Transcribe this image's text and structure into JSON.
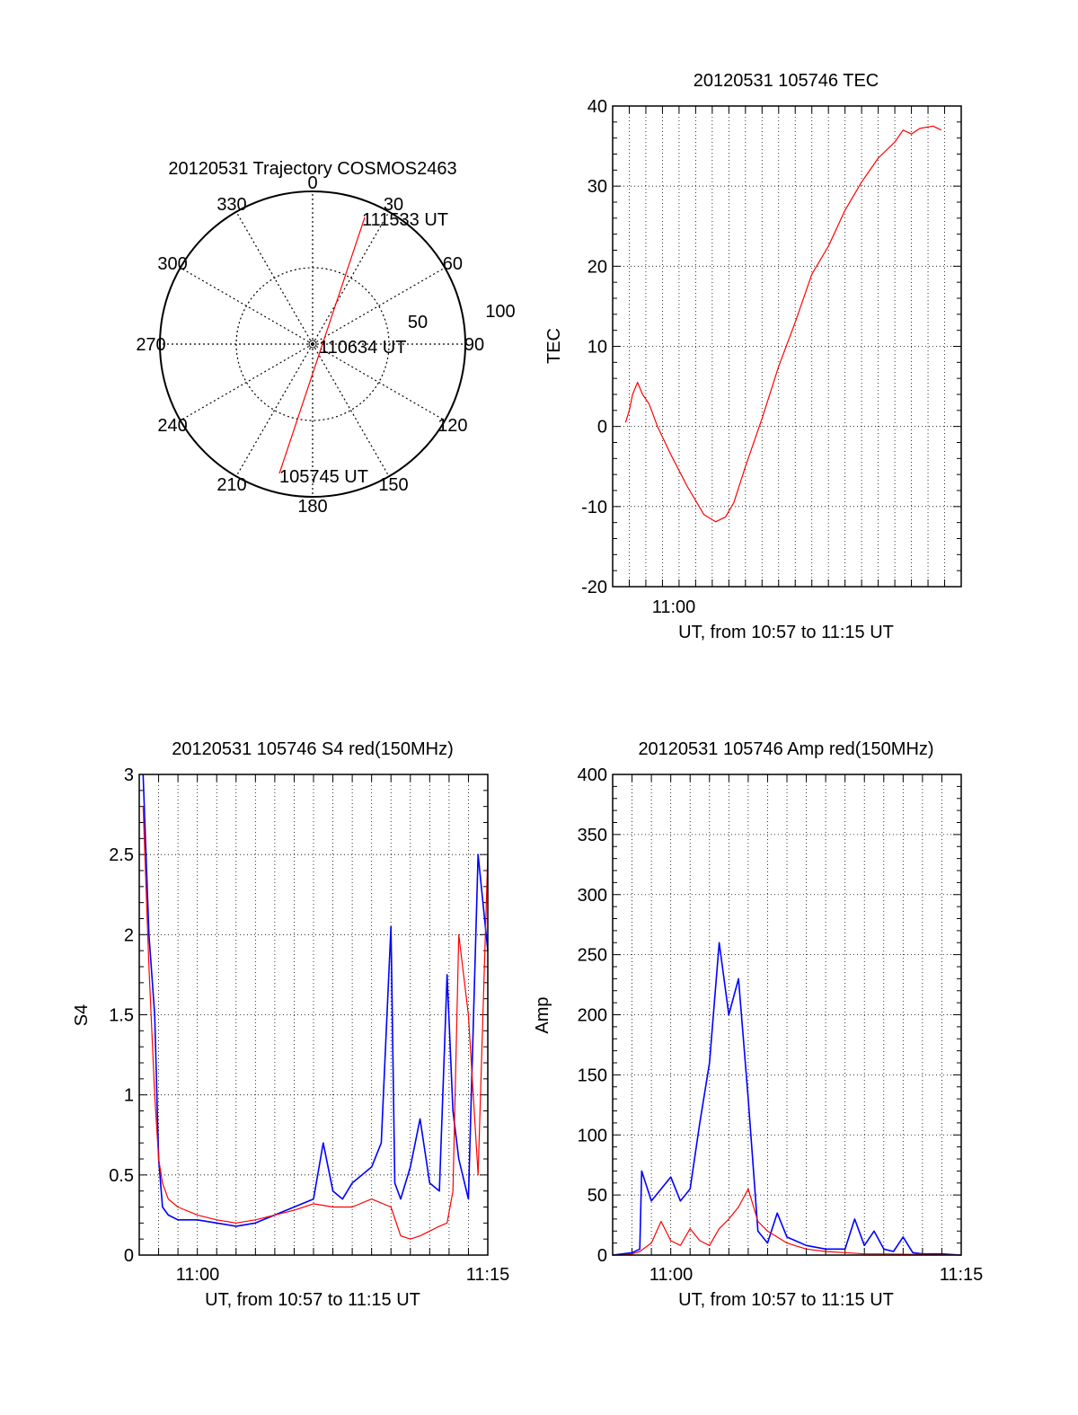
{
  "colors": {
    "red": "#ff0000",
    "blue": "#0000ff",
    "axis": "#000000",
    "grid": "#000000"
  },
  "chart_data": [
    {
      "id": "trajectory",
      "type": "polar",
      "title": "20120531 Trajectory COSMOS2463",
      "azimuth_labels": [
        "0",
        "30",
        "60",
        "90",
        "120",
        "150",
        "180",
        "210",
        "240",
        "270",
        "300",
        "330"
      ],
      "radial_labels": [
        "50",
        "100"
      ],
      "track": {
        "start": {
          "time_label": "105745 UT",
          "azimuth": 200,
          "elevation": 10
        },
        "closest": {
          "time_label": "110634 UT",
          "azimuth": 15,
          "elevation": 88
        },
        "end": {
          "time_label": "111533 UT",
          "azimuth": 18,
          "elevation": 5
        }
      },
      "track_color": "red"
    },
    {
      "id": "tec",
      "type": "line",
      "title": "20120531 105746 TEC",
      "xlabel": "UT, from 10:57 to 11:15 UT",
      "ylabel": "TEC",
      "x_tick_labels": [
        "11:00"
      ],
      "xlim_min": [
        -3,
        18
      ],
      "ylim": [
        -20,
        40
      ],
      "y_ticks": [
        -20,
        -10,
        0,
        10,
        20,
        30,
        40
      ],
      "grid": true,
      "series": [
        {
          "color": "red",
          "x": [
            -2.22,
            -2.0,
            -1.8,
            -1.5,
            -1.2,
            -0.8,
            -0.3,
            0.5,
            1.5,
            2.5,
            3.2,
            3.8,
            4.3,
            5.0,
            6.0,
            7.0,
            8.0,
            9.0,
            10.0,
            11.0,
            12.0,
            13.0,
            14.0,
            14.5,
            15.0,
            15.5,
            16.3,
            16.8
          ],
          "y": [
            0.5,
            2.0,
            4.0,
            5.5,
            4.0,
            2.8,
            0.0,
            -3.5,
            -7.5,
            -11.0,
            -11.9,
            -11.3,
            -9.5,
            -5.0,
            1.0,
            7.5,
            13.0,
            19.0,
            22.5,
            27.0,
            30.5,
            33.5,
            35.5,
            37.0,
            36.5,
            37.2,
            37.5,
            37.0
          ]
        }
      ]
    },
    {
      "id": "s4",
      "type": "line",
      "title": "20120531 105746 S4 red(150MHz)",
      "xlabel": "UT, from 10:57 to 11:15 UT",
      "ylabel": "S4",
      "x_tick_labels": [
        "11:00",
        "11:15"
      ],
      "xlim_min": [
        -3,
        15
      ],
      "ylim": [
        0,
        3
      ],
      "y_ticks": [
        0,
        0.5,
        1,
        1.5,
        2,
        2.5,
        3
      ],
      "y_tick_labels": [
        "0",
        "0.5",
        "1",
        "1.5",
        "2",
        "2.5",
        "3"
      ],
      "grid": true,
      "series": [
        {
          "color": "blue",
          "x": [
            -2.8,
            -2.5,
            -2.2,
            -2.0,
            -1.8,
            -1.5,
            -1.0,
            0.0,
            1.0,
            2.0,
            3.0,
            4.0,
            5.0,
            6.0,
            6.5,
            7.0,
            7.5,
            8.0,
            9.0,
            9.5,
            10.0,
            10.2,
            10.5,
            11.0,
            11.5,
            12.0,
            12.5,
            12.9,
            13.2,
            13.5,
            14.0,
            14.5,
            15.0
          ],
          "y": [
            3.0,
            2.0,
            1.5,
            0.6,
            0.3,
            0.25,
            0.22,
            0.22,
            0.2,
            0.18,
            0.2,
            0.25,
            0.3,
            0.35,
            0.7,
            0.4,
            0.35,
            0.45,
            0.55,
            0.7,
            2.05,
            0.45,
            0.35,
            0.55,
            0.85,
            0.45,
            0.4,
            1.75,
            0.9,
            0.6,
            0.35,
            2.5,
            1.9
          ]
        },
        {
          "color": "red",
          "x": [
            -2.8,
            -2.5,
            -2.2,
            -2.0,
            -1.8,
            -1.5,
            -1.0,
            0.0,
            1.0,
            2.0,
            3.0,
            4.0,
            5.0,
            6.0,
            7.0,
            8.0,
            9.0,
            10.0,
            10.5,
            11.0,
            11.5,
            12.0,
            12.5,
            12.9,
            13.2,
            13.5,
            14.0,
            14.5,
            15.0
          ],
          "y": [
            2.8,
            1.8,
            1.0,
            0.6,
            0.45,
            0.35,
            0.3,
            0.25,
            0.22,
            0.2,
            0.22,
            0.25,
            0.28,
            0.32,
            0.3,
            0.3,
            0.35,
            0.3,
            0.12,
            0.1,
            0.12,
            0.15,
            0.18,
            0.2,
            0.4,
            2.0,
            1.5,
            0.5,
            2.5
          ]
        }
      ]
    },
    {
      "id": "amp",
      "type": "line",
      "title": "20120531 105746 Amp red(150MHz)",
      "xlabel": "UT, from 10:57 to 11:15 UT",
      "ylabel": "Amp",
      "x_tick_labels": [
        "11:00",
        "11:15"
      ],
      "xlim_min": [
        -3,
        15
      ],
      "ylim": [
        0,
        400
      ],
      "y_ticks": [
        0,
        50,
        100,
        150,
        200,
        250,
        300,
        350,
        400
      ],
      "grid": true,
      "series": [
        {
          "color": "blue",
          "x": [
            -3.0,
            -2.5,
            -2.0,
            -1.6,
            -1.5,
            -1.0,
            0.0,
            0.5,
            1.0,
            1.5,
            2.0,
            2.5,
            3.0,
            3.5,
            4.0,
            4.5,
            5.0,
            5.5,
            6.0,
            7.0,
            8.0,
            9.0,
            9.5,
            10.0,
            10.5,
            11.0,
            11.5,
            12.0,
            12.5,
            13.0,
            14.0,
            15.0
          ],
          "y": [
            0,
            1,
            2,
            5,
            70,
            45,
            65,
            45,
            55,
            110,
            160,
            260,
            200,
            230,
            130,
            20,
            10,
            35,
            15,
            8,
            5,
            5,
            30,
            8,
            20,
            5,
            3,
            15,
            2,
            1,
            1,
            0
          ]
        },
        {
          "color": "red",
          "x": [
            -3.0,
            -2.5,
            -2.0,
            -1.6,
            -1.0,
            -0.5,
            0.0,
            0.5,
            1.0,
            1.5,
            2.0,
            2.5,
            3.0,
            3.5,
            4.0,
            4.5,
            5.0,
            5.5,
            6.0,
            7.0,
            8.0,
            9.0,
            10.0,
            11.0,
            15.0
          ],
          "y": [
            0,
            0,
            1,
            3,
            10,
            28,
            12,
            8,
            22,
            12,
            8,
            22,
            30,
            40,
            55,
            28,
            20,
            15,
            10,
            5,
            3,
            2,
            1,
            1,
            0
          ]
        }
      ]
    }
  ]
}
